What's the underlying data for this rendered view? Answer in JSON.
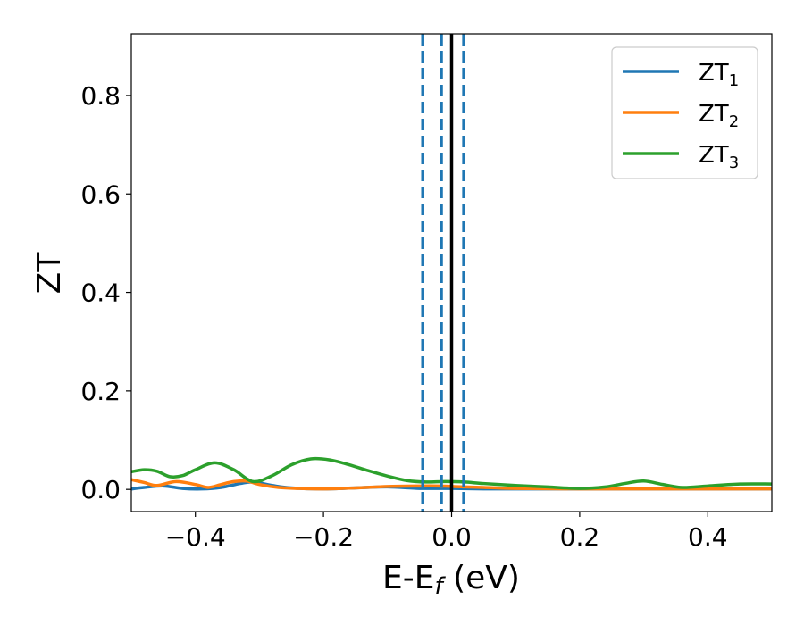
{
  "chart_data": {
    "type": "line",
    "xlabel_main": "E-E",
    "xlabel_sub": "f",
    "xlabel_unit": " (eV)",
    "ylabel": "ZT",
    "xlim": [
      -0.5,
      0.5
    ],
    "ylim": [
      -0.045,
      0.925
    ],
    "xticks": [
      {
        "value": -0.4,
        "label": "−0.4"
      },
      {
        "value": -0.2,
        "label": "−0.2"
      },
      {
        "value": 0.0,
        "label": "0.0"
      },
      {
        "value": 0.2,
        "label": "0.2"
      },
      {
        "value": 0.4,
        "label": "0.4"
      }
    ],
    "yticks": [
      {
        "value": 0.0,
        "label": "0.0"
      },
      {
        "value": 0.2,
        "label": "0.2"
      },
      {
        "value": 0.4,
        "label": "0.4"
      },
      {
        "value": 0.6,
        "label": "0.6"
      },
      {
        "value": 0.8,
        "label": "0.8"
      }
    ],
    "grid": false,
    "legend_position": "top-right",
    "series": [
      {
        "name": "ZT",
        "sub": "1",
        "color": "#1f77b4",
        "x": [
          -0.5,
          -0.48,
          -0.45,
          -0.42,
          -0.39,
          -0.36,
          -0.33,
          -0.31,
          -0.28,
          -0.25,
          -0.2,
          -0.15,
          -0.1,
          -0.05,
          0.0,
          0.05,
          0.1,
          0.2,
          0.3,
          0.4,
          0.5
        ],
        "y": [
          0.001,
          0.004,
          0.007,
          0.002,
          0.001,
          0.004,
          0.012,
          0.015,
          0.008,
          0.003,
          0.001,
          0.003,
          0.005,
          0.002,
          0.002,
          0.001,
          0.001,
          0.001,
          0.001,
          0.001,
          0.001
        ]
      },
      {
        "name": "ZT",
        "sub": "2",
        "color": "#ff7f0e",
        "x": [
          -0.5,
          -0.48,
          -0.46,
          -0.43,
          -0.4,
          -0.38,
          -0.36,
          -0.34,
          -0.32,
          -0.3,
          -0.27,
          -0.24,
          -0.2,
          -0.15,
          -0.1,
          -0.05,
          -0.02,
          0.0,
          0.05,
          0.1,
          0.2,
          0.3,
          0.4,
          0.5
        ],
        "y": [
          0.02,
          0.014,
          0.008,
          0.016,
          0.01,
          0.004,
          0.01,
          0.016,
          0.017,
          0.01,
          0.004,
          0.002,
          0.001,
          0.003,
          0.006,
          0.007,
          0.007,
          0.006,
          0.004,
          0.002,
          0.001,
          0.001,
          0.001,
          0.001
        ]
      },
      {
        "name": "ZT",
        "sub": "3",
        "color": "#2ca02c",
        "x": [
          -0.5,
          -0.48,
          -0.46,
          -0.44,
          -0.42,
          -0.4,
          -0.37,
          -0.34,
          -0.31,
          -0.28,
          -0.25,
          -0.22,
          -0.19,
          -0.16,
          -0.13,
          -0.1,
          -0.07,
          -0.04,
          -0.01,
          0.02,
          0.05,
          0.1,
          0.15,
          0.2,
          0.24,
          0.27,
          0.3,
          0.33,
          0.36,
          0.4,
          0.45,
          0.5
        ],
        "y": [
          0.036,
          0.04,
          0.037,
          0.026,
          0.028,
          0.04,
          0.054,
          0.04,
          0.016,
          0.028,
          0.05,
          0.062,
          0.06,
          0.05,
          0.038,
          0.027,
          0.018,
          0.015,
          0.016,
          0.015,
          0.012,
          0.008,
          0.005,
          0.002,
          0.005,
          0.012,
          0.017,
          0.01,
          0.004,
          0.007,
          0.011,
          0.011
        ]
      }
    ],
    "vlines": [
      {
        "x": -0.045,
        "color": "#1f77b4",
        "style": "dashed"
      },
      {
        "x": -0.016,
        "color": "#1f77b4",
        "style": "dashed"
      },
      {
        "x": 0.019,
        "color": "#1f77b4",
        "style": "dashed"
      },
      {
        "x": 0.0,
        "color": "#000000",
        "style": "solid"
      }
    ]
  }
}
